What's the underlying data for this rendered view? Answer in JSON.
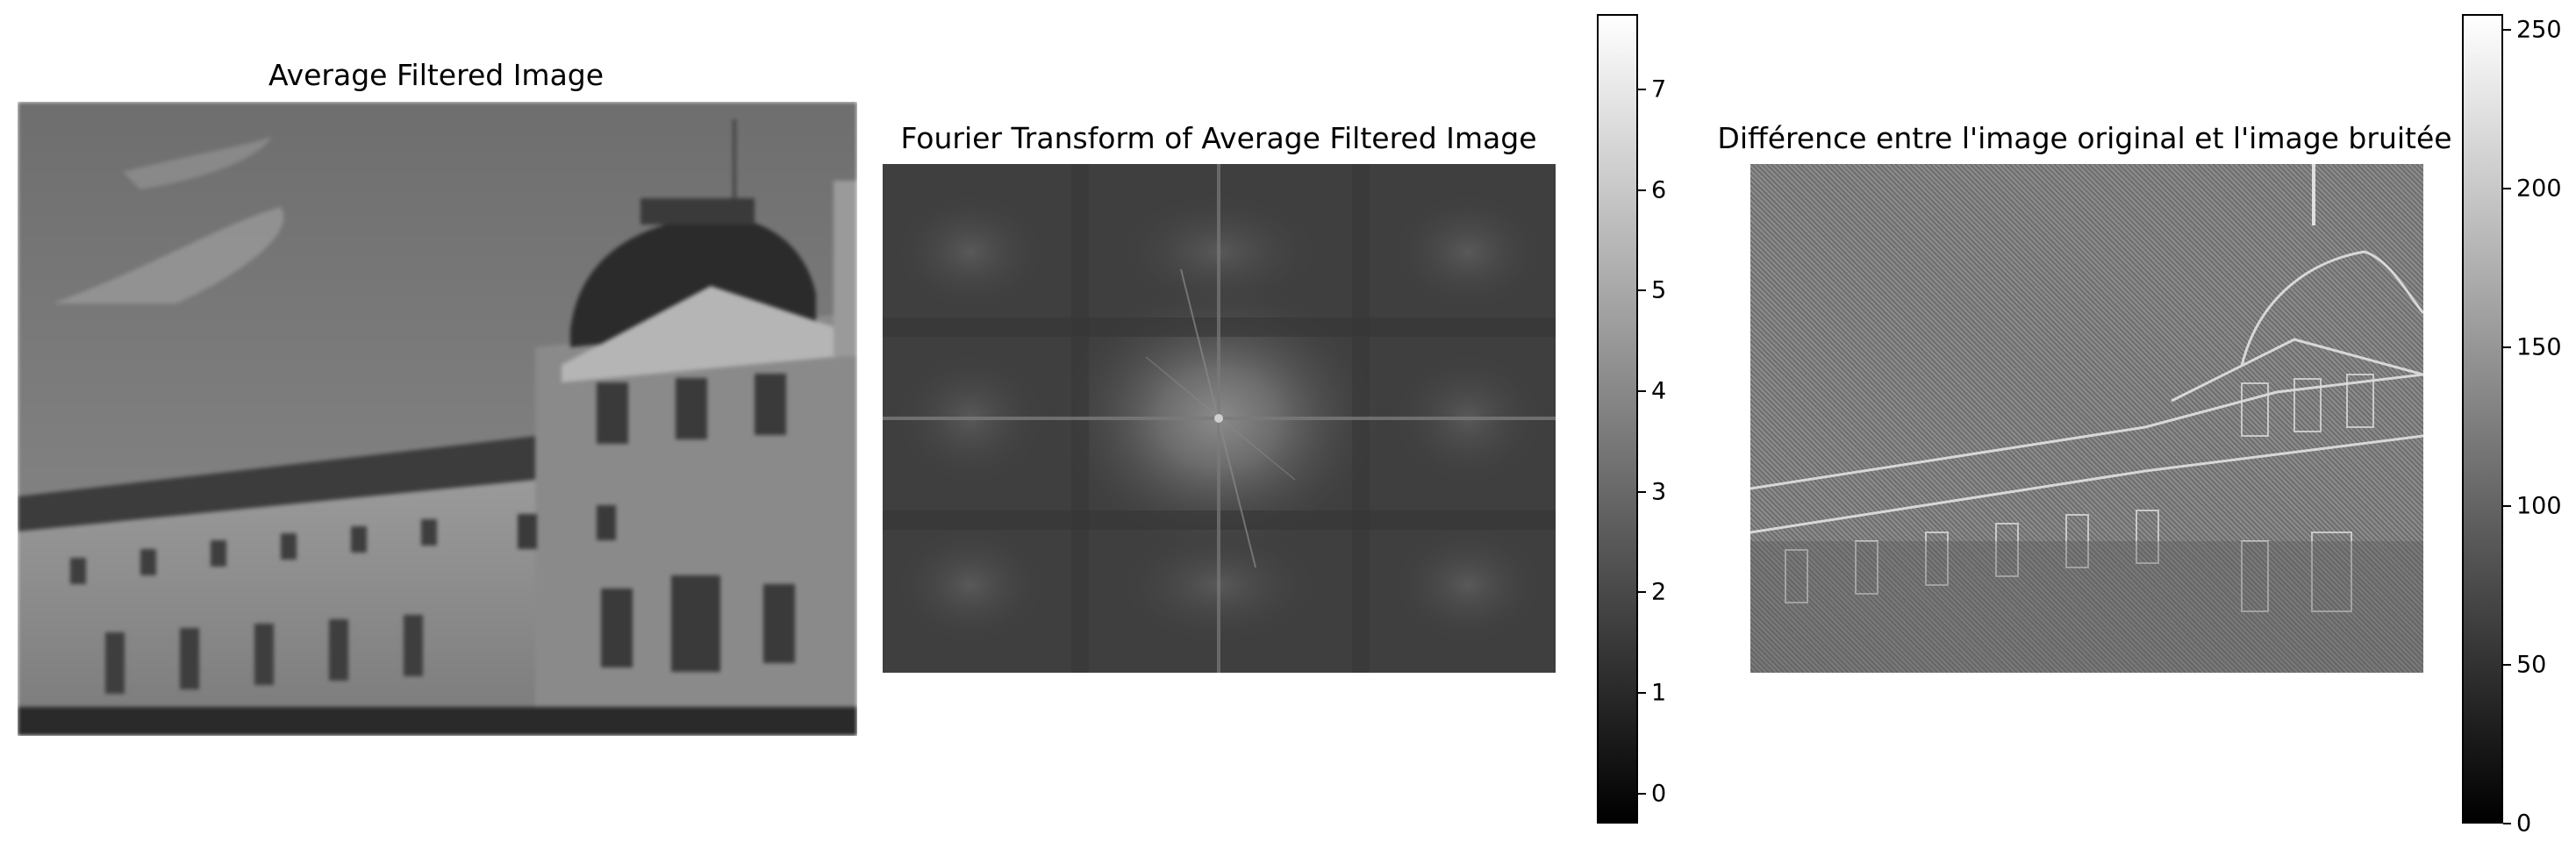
{
  "figure": {
    "panel1": {
      "title": "Average Filtered Image"
    },
    "panel2": {
      "title": "Fourier Transform of Average Filtered Image",
      "colorbar": {
        "min": -0.3,
        "max": 7.75,
        "ticks": [
          "0",
          "1",
          "2",
          "3",
          "4",
          "5",
          "6",
          "7"
        ]
      }
    },
    "panel3": {
      "title": "Différence entre l'image original et l'image bruitée",
      "colorbar": {
        "min": 0,
        "max": 255,
        "ticks": [
          "0",
          "50",
          "100",
          "150",
          "200",
          "250"
        ]
      }
    }
  }
}
